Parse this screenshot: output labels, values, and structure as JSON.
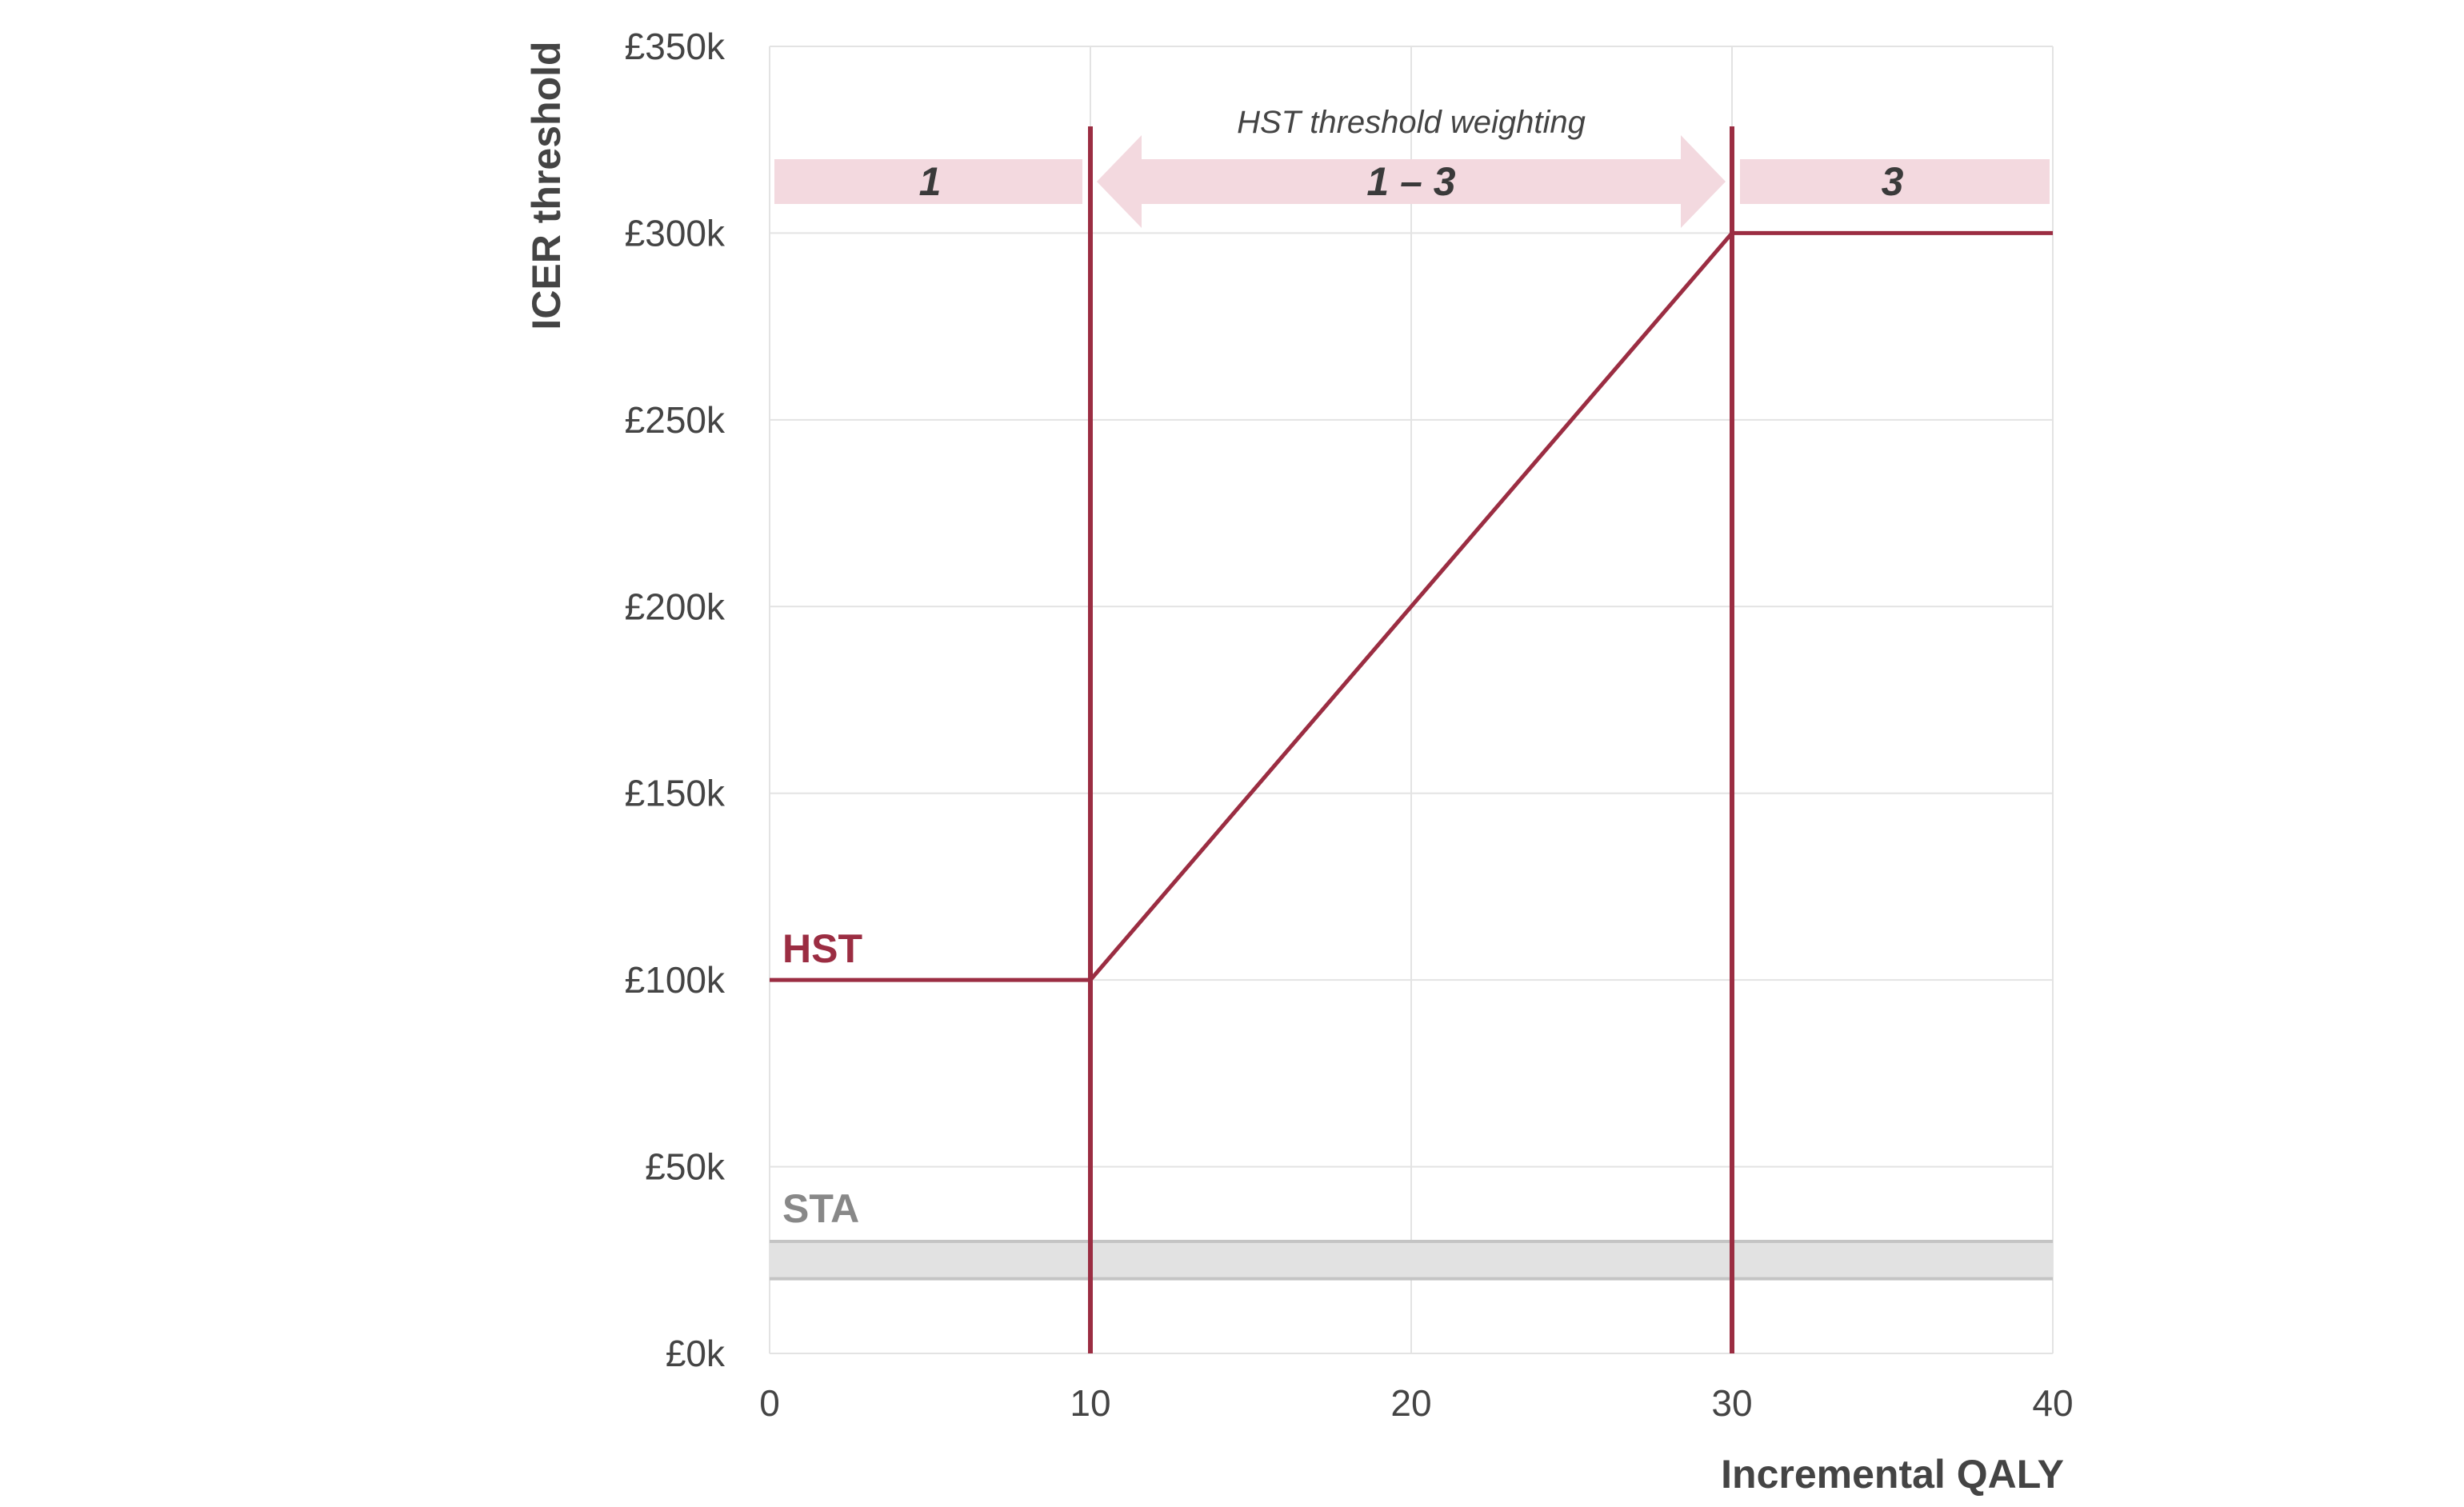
{
  "chart_data": {
    "type": "line",
    "xlabel": "Incremental QALY",
    "ylabel": "ICER threshold",
    "xlim": [
      0,
      40
    ],
    "ylim": [
      0,
      350000
    ],
    "x_ticks": [
      0,
      10,
      20,
      30,
      40
    ],
    "y_ticks": [
      0,
      50000,
      100000,
      150000,
      200000,
      250000,
      300000,
      350000
    ],
    "x_tick_labels": [
      "0",
      "10",
      "20",
      "30",
      "40"
    ],
    "y_tick_labels": [
      "£0k",
      "£50k",
      "£100k",
      "£150k",
      "£200k",
      "£250k",
      "£300k",
      "£350k"
    ],
    "grid": true,
    "series": [
      {
        "name": "HST",
        "color": "#9b2d42",
        "points": [
          [
            0,
            100000
          ],
          [
            10,
            100000
          ],
          [
            30,
            300000
          ],
          [
            40,
            300000
          ]
        ]
      }
    ],
    "sta_band": {
      "name": "STA",
      "y_range": [
        20000,
        30000
      ],
      "color": "#e2e2e2",
      "label_color": "#888888"
    },
    "vertical_lines": [
      10,
      30
    ],
    "weighting_annotation": "HST threshold weighting",
    "bands": [
      {
        "label": "1",
        "x_range": [
          0,
          10
        ]
      },
      {
        "label": "1 – 3",
        "x_range": [
          10,
          30
        ]
      },
      {
        "label": "3",
        "x_range": [
          30,
          40
        ]
      }
    ],
    "band_color": "#f3d9df",
    "accent_color": "#9b2d42"
  }
}
